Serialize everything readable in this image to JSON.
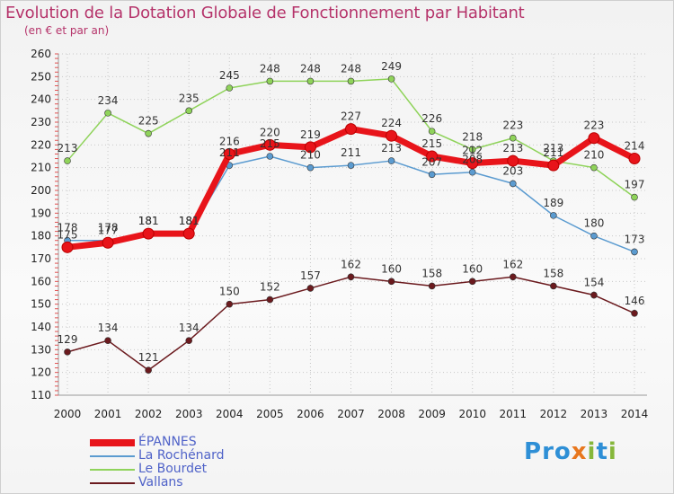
{
  "title": "Evolution de la Dotation Globale de Fonctionnement par Habitant",
  "subtitle": "(en € et par an)",
  "logo": {
    "text": "Proxiti",
    "colors": [
      "#2e8fd6",
      "#e8771e",
      "#86b73b",
      "#2e8fd6"
    ]
  },
  "colors": {
    "title": "#b5336a",
    "grid": "#c8c8c8",
    "legend_text": "#4f62c8"
  },
  "chart_data": {
    "type": "line",
    "title": "Evolution de la Dotation Globale de Fonctionnement par Habitant",
    "subtitle": "(en € et par an)",
    "xlabel": "",
    "ylabel": "",
    "x": [
      "2000",
      "2001",
      "2002",
      "2003",
      "2004",
      "2005",
      "2006",
      "2007",
      "2008",
      "2009",
      "2010",
      "2011",
      "2012",
      "2013",
      "2014"
    ],
    "ylim": [
      110,
      260
    ],
    "yticks": [
      110,
      120,
      130,
      140,
      150,
      160,
      170,
      180,
      190,
      200,
      210,
      220,
      230,
      240,
      250,
      260
    ],
    "grid": true,
    "legend_position": "bottom-left",
    "series": [
      {
        "name": "ÉPANNES",
        "color": "#e8141a",
        "values": [
          175,
          177,
          181,
          181,
          216,
          220,
          219,
          227,
          224,
          215,
          212,
          213,
          211,
          223,
          214
        ]
      },
      {
        "name": "La Rochénard",
        "color": "#5b9bd0",
        "values": [
          178,
          178,
          181,
          181,
          211,
          215,
          210,
          211,
          213,
          207,
          208,
          203,
          189,
          180,
          173
        ]
      },
      {
        "name": "Le Bourdet",
        "color": "#8fd35a",
        "values": [
          213,
          234,
          225,
          235,
          245,
          248,
          248,
          248,
          249,
          226,
          218,
          223,
          213,
          210,
          197
        ]
      },
      {
        "name": "Vallans",
        "color": "#6b1a1e",
        "values": [
          129,
          134,
          121,
          134,
          150,
          152,
          157,
          162,
          160,
          158,
          160,
          162,
          158,
          154,
          146
        ]
      }
    ]
  }
}
